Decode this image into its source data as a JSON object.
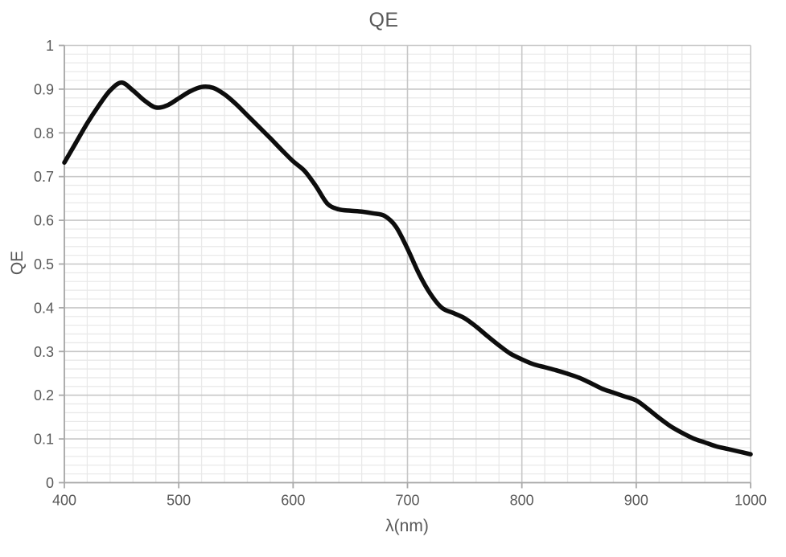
{
  "chart_data": {
    "type": "line",
    "title": "QE",
    "xlabel": "λ(nm)",
    "ylabel": "QE",
    "xlim": [
      400,
      1000
    ],
    "ylim": [
      0,
      1
    ],
    "x_major_step": 100,
    "x_minor_step": 20,
    "y_major_step": 0.1,
    "y_minor_step": 0.02,
    "x_tick_labels": [
      "400",
      "500",
      "600",
      "700",
      "800",
      "900",
      "1000"
    ],
    "y_tick_labels": [
      "0",
      "0.1",
      "0.2",
      "0.3",
      "0.4",
      "0.5",
      "0.6",
      "0.7",
      "0.8",
      "0.9",
      "1"
    ],
    "grid": true,
    "legend": "none",
    "series": [
      {
        "name": "QE",
        "x": [
          400,
          410,
          420,
          430,
          440,
          450,
          460,
          470,
          480,
          490,
          500,
          510,
          520,
          530,
          540,
          550,
          560,
          570,
          580,
          590,
          600,
          610,
          620,
          630,
          640,
          650,
          660,
          670,
          680,
          690,
          700,
          710,
          720,
          730,
          740,
          750,
          760,
          770,
          780,
          790,
          800,
          810,
          820,
          830,
          840,
          850,
          860,
          870,
          880,
          890,
          900,
          910,
          920,
          930,
          940,
          950,
          960,
          970,
          980,
          990,
          1000
        ],
        "values": [
          0.732,
          0.777,
          0.822,
          0.862,
          0.897,
          0.915,
          0.897,
          0.874,
          0.858,
          0.863,
          0.879,
          0.895,
          0.905,
          0.903,
          0.888,
          0.866,
          0.84,
          0.814,
          0.788,
          0.761,
          0.735,
          0.713,
          0.678,
          0.638,
          0.625,
          0.622,
          0.62,
          0.616,
          0.61,
          0.585,
          0.535,
          0.478,
          0.432,
          0.4,
          0.388,
          0.376,
          0.357,
          0.335,
          0.314,
          0.295,
          0.282,
          0.271,
          0.264,
          0.257,
          0.249,
          0.24,
          0.228,
          0.215,
          0.206,
          0.197,
          0.188,
          0.169,
          0.148,
          0.129,
          0.114,
          0.101,
          0.092,
          0.083,
          0.077,
          0.071,
          0.065
        ],
        "smooth": true
      }
    ],
    "colors": {
      "background": "#ffffff",
      "text": "#595959",
      "grid_minor": "#e9e9e9",
      "grid_major": "#c7c7c7",
      "axis": "#a9a9a9",
      "line": "#0d0d0d"
    }
  }
}
